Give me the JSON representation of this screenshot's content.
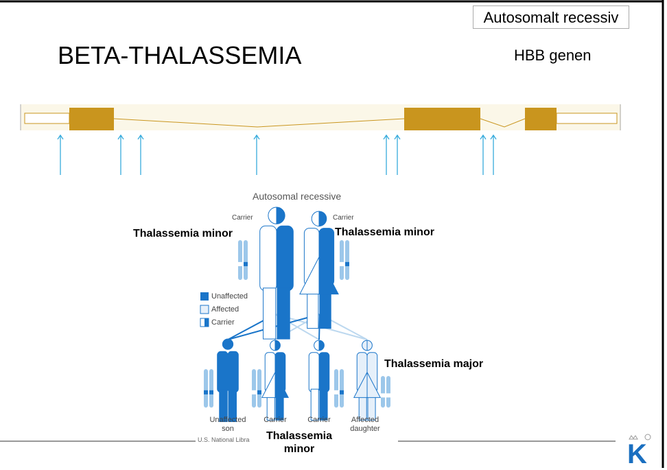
{
  "header": {
    "badge": "Autosomalt recessiv",
    "title": "BETA-THALASSEMIA",
    "gene": "HBB genen"
  },
  "figure": {
    "title": "Autosomal recessive",
    "parents": [
      "Carrier",
      "Carrier"
    ],
    "legend": [
      "Unaffected",
      "Affected",
      "Carrier"
    ],
    "children": [
      "Unaffected son",
      "Carrier",
      "Carrier",
      "Affected daughter"
    ],
    "credit": "U.S. National Libra"
  },
  "annotations": [
    "Thalassemia minor",
    "Thalassemia minor",
    "Thalassemia major",
    "Thalassemia minor"
  ],
  "logo": "K"
}
